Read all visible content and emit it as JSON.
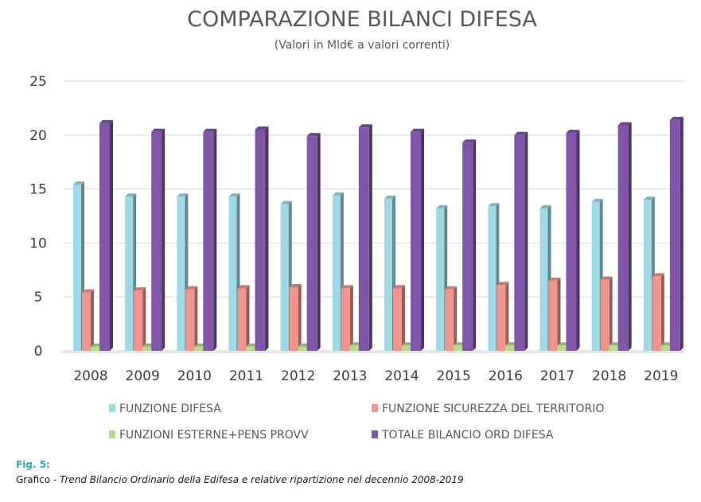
{
  "chart_data": {
    "type": "bar",
    "title": "COMPARAZIONE BILANCI DIFESA",
    "subtitle": "(Valori in Mld€ a valori correnti)",
    "categories": [
      "2008",
      "2009",
      "2010",
      "2011",
      "2012",
      "2013",
      "2014",
      "2015",
      "2016",
      "2017",
      "2018",
      "2019"
    ],
    "ylim": [
      0,
      25
    ],
    "yticks": [
      0,
      5,
      10,
      15,
      20,
      25
    ],
    "grid": true,
    "legend_position": "bottom",
    "series": [
      {
        "name": "FUNZIONE DIFESA",
        "color": "#9fd9e6",
        "values": [
          15.4,
          14.3,
          14.3,
          14.3,
          13.6,
          14.4,
          14.1,
          13.2,
          13.4,
          13.2,
          13.8,
          14.0
        ]
      },
      {
        "name": "FUNZIONE SICUREZZA DEL TERRITORIO",
        "color": "#f0958e",
        "values": [
          5.4,
          5.6,
          5.7,
          5.8,
          5.9,
          5.8,
          5.8,
          5.7,
          6.1,
          6.5,
          6.6,
          6.9
        ]
      },
      {
        "name": "FUNZIONI ESTERNE+PENS PROVV",
        "color": "#b8dc8e",
        "values": [
          0.4,
          0.4,
          0.4,
          0.4,
          0.4,
          0.5,
          0.5,
          0.5,
          0.5,
          0.5,
          0.5,
          0.5
        ]
      },
      {
        "name": "TOTALE BILANCIO ORD DIFESA",
        "color": "#8155a8",
        "values": [
          21.1,
          20.3,
          20.3,
          20.5,
          19.9,
          20.7,
          20.3,
          19.3,
          20.0,
          20.2,
          20.9,
          21.4
        ]
      }
    ]
  },
  "caption": {
    "fig_label": "Fig. 5:",
    "prefix": "Grafico - ",
    "text": "Trend Bilancio Ordinario della Edifesa e relative ripartizione nel decennio 2008-2019"
  }
}
